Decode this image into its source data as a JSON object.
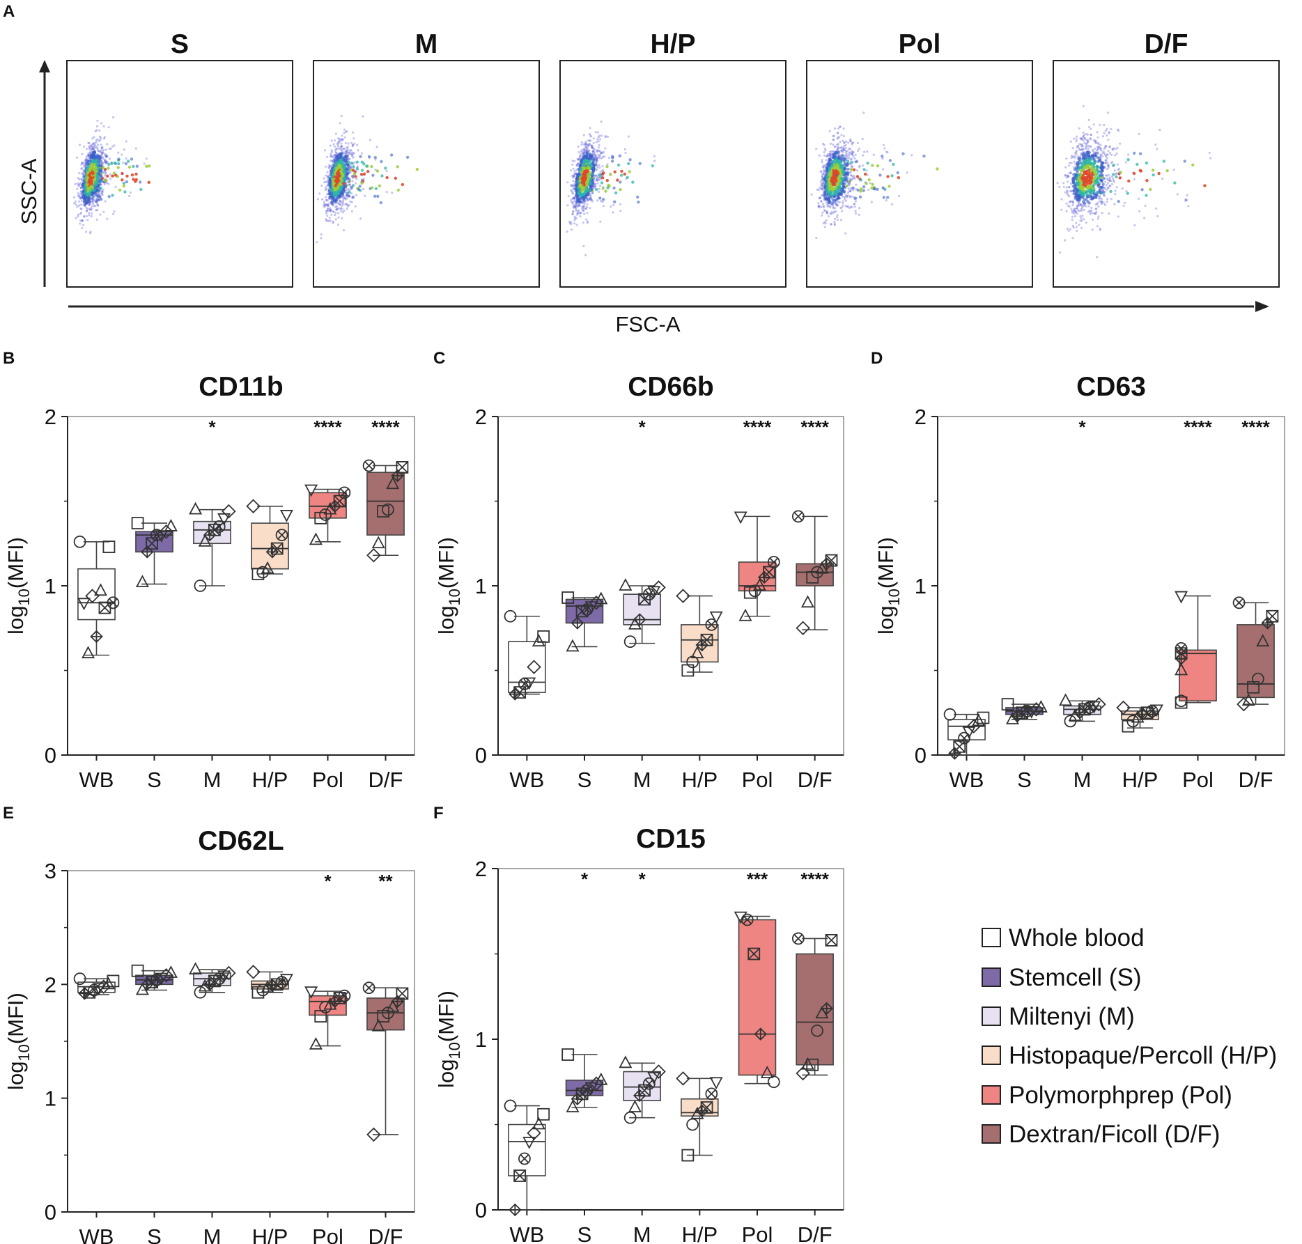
{
  "figure": {
    "panel_a": {
      "label": "A",
      "xaxis_label": "FSC-A",
      "yaxis_label": "SSC-A",
      "plots": [
        {
          "title": "S",
          "spread": 1.0,
          "tilt": 0.9
        },
        {
          "title": "M",
          "spread": 1.0,
          "tilt": 0.9
        },
        {
          "title": "H/P",
          "spread": 1.0,
          "tilt": 0.9
        },
        {
          "title": "Pol",
          "spread": 1.3,
          "tilt": 0.8
        },
        {
          "title": "D/F",
          "spread": 1.8,
          "tilt": 0.6
        }
      ]
    },
    "box_ylabel": "log10(MFI)",
    "categories": [
      "WB",
      "S",
      "M",
      "H/P",
      "Pol",
      "D/F"
    ]
  },
  "legend": {
    "items": [
      {
        "label": "Whole blood",
        "color": "#ffffff"
      },
      {
        "label": "Stemcell (S)",
        "color": "#7d6aa6"
      },
      {
        "label": "Miltenyi (M)",
        "color": "#e7e1f1"
      },
      {
        "label": "Histopaque/Percoll (H/P)",
        "color": "#f9ddc9"
      },
      {
        "label": "Polymorphprep (Pol)",
        "color": "#ee8582"
      },
      {
        "label": "Dextran/Ficoll (D/F)",
        "color": "#a66f6f"
      }
    ]
  },
  "chart_data": [
    {
      "panel": "B",
      "type": "box",
      "title": "CD11b",
      "ylabel": "log10(MFI)",
      "ylim": [
        0,
        2
      ],
      "yticks": [
        0,
        1,
        2
      ],
      "categories": [
        "WB",
        "S",
        "M",
        "H/P",
        "Pol",
        "D/F"
      ],
      "significance": [
        "",
        "",
        "*",
        "",
        "****",
        "****"
      ],
      "boxes": [
        {
          "min": 0.59,
          "q1": 0.8,
          "median": 0.9,
          "q3": 1.1,
          "max": 1.26,
          "points": [
            1.26,
            1.23,
            0.97,
            0.94,
            0.9,
            0.9,
            0.87,
            0.7,
            0.6
          ]
        },
        {
          "min": 1.01,
          "q1": 1.2,
          "median": 1.3,
          "q3": 1.32,
          "max": 1.37,
          "points": [
            1.37,
            1.35,
            1.32,
            1.3,
            1.3,
            1.25,
            1.2,
            1.02
          ]
        },
        {
          "min": 1.0,
          "q1": 1.25,
          "median": 1.33,
          "q3": 1.38,
          "max": 1.45,
          "points": [
            1.45,
            1.44,
            1.4,
            1.35,
            1.33,
            1.3,
            1.26,
            1.0
          ]
        },
        {
          "min": 1.07,
          "q1": 1.1,
          "median": 1.22,
          "q3": 1.37,
          "max": 1.47,
          "points": [
            1.47,
            1.42,
            1.3,
            1.22,
            1.2,
            1.1,
            1.08,
            1.07
          ]
        },
        {
          "min": 1.26,
          "q1": 1.4,
          "median": 1.47,
          "q3": 1.55,
          "max": 1.57,
          "points": [
            1.57,
            1.55,
            1.5,
            1.47,
            1.45,
            1.42,
            1.4,
            1.27
          ]
        },
        {
          "min": 1.18,
          "q1": 1.3,
          "median": 1.5,
          "q3": 1.67,
          "max": 1.71,
          "points": [
            1.71,
            1.7,
            1.65,
            1.6,
            1.45,
            1.44,
            1.25,
            1.18
          ]
        }
      ]
    },
    {
      "panel": "C",
      "type": "box",
      "title": "CD66b",
      "ylabel": "log10(MFI)",
      "ylim": [
        0,
        2
      ],
      "yticks": [
        0,
        1,
        2
      ],
      "categories": [
        "WB",
        "S",
        "M",
        "H/P",
        "Pol",
        "D/F"
      ],
      "significance": [
        "",
        "",
        "*",
        "",
        "****",
        "****"
      ],
      "boxes": [
        {
          "min": 0.36,
          "q1": 0.37,
          "median": 0.43,
          "q3": 0.67,
          "max": 0.82,
          "points": [
            0.82,
            0.7,
            0.67,
            0.52,
            0.43,
            0.42,
            0.37,
            0.36
          ]
        },
        {
          "min": 0.64,
          "q1": 0.78,
          "median": 0.88,
          "q3": 0.92,
          "max": 0.93,
          "points": [
            0.93,
            0.92,
            0.9,
            0.88,
            0.86,
            0.85,
            0.78,
            0.64
          ]
        },
        {
          "min": 0.66,
          "q1": 0.77,
          "median": 0.8,
          "q3": 0.95,
          "max": 1.0,
          "points": [
            1.0,
            0.99,
            0.97,
            0.95,
            0.92,
            0.8,
            0.77,
            0.67
          ]
        },
        {
          "min": 0.49,
          "q1": 0.55,
          "median": 0.68,
          "q3": 0.77,
          "max": 0.94,
          "points": [
            0.94,
            0.82,
            0.77,
            0.68,
            0.65,
            0.6,
            0.55,
            0.5
          ]
        },
        {
          "min": 0.82,
          "q1": 0.97,
          "median": 1.0,
          "q3": 1.14,
          "max": 1.41,
          "points": [
            1.41,
            1.14,
            1.08,
            1.05,
            1.0,
            0.97,
            0.96,
            0.82
          ]
        },
        {
          "min": 0.74,
          "q1": 1.0,
          "median": 1.08,
          "q3": 1.13,
          "max": 1.41,
          "points": [
            1.41,
            1.15,
            1.13,
            1.1,
            1.08,
            1.05,
            0.9,
            0.75
          ]
        }
      ]
    },
    {
      "panel": "D",
      "type": "box",
      "title": "CD63",
      "ylabel": "log10(MFI)",
      "ylim": [
        0,
        2
      ],
      "yticks": [
        0,
        1,
        2
      ],
      "categories": [
        "WB",
        "S",
        "M",
        "H/P",
        "Pol",
        "D/F"
      ],
      "significance": [
        "",
        "",
        "*",
        "",
        "****",
        "****"
      ],
      "boxes": [
        {
          "min": 0.0,
          "q1": 0.09,
          "median": 0.17,
          "q3": 0.21,
          "max": 0.24,
          "points": [
            0.24,
            0.22,
            0.2,
            0.17,
            0.14,
            0.1,
            0.05,
            0.01
          ]
        },
        {
          "min": 0.21,
          "q1": 0.24,
          "median": 0.26,
          "q3": 0.28,
          "max": 0.3,
          "points": [
            0.3,
            0.28,
            0.27,
            0.26,
            0.26,
            0.25,
            0.23,
            0.21
          ]
        },
        {
          "min": 0.2,
          "q1": 0.24,
          "median": 0.27,
          "q3": 0.29,
          "max": 0.32,
          "points": [
            0.32,
            0.3,
            0.29,
            0.28,
            0.27,
            0.25,
            0.23,
            0.2
          ]
        },
        {
          "min": 0.16,
          "q1": 0.21,
          "median": 0.24,
          "q3": 0.26,
          "max": 0.28,
          "points": [
            0.28,
            0.27,
            0.26,
            0.25,
            0.24,
            0.22,
            0.2,
            0.17
          ]
        },
        {
          "min": 0.31,
          "q1": 0.32,
          "median": 0.6,
          "q3": 0.62,
          "max": 0.94,
          "points": [
            0.94,
            0.63,
            0.6,
            0.57,
            0.5,
            0.32,
            0.31
          ]
        },
        {
          "min": 0.3,
          "q1": 0.34,
          "median": 0.42,
          "q3": 0.77,
          "max": 0.9,
          "points": [
            0.9,
            0.82,
            0.78,
            0.67,
            0.45,
            0.4,
            0.32,
            0.3
          ]
        }
      ]
    },
    {
      "panel": "E",
      "type": "box",
      "title": "CD62L",
      "ylabel": "log10(MFI)",
      "ylim": [
        0,
        3
      ],
      "yticks": [
        0,
        1,
        2,
        3
      ],
      "categories": [
        "WB",
        "S",
        "M",
        "H/P",
        "Pol",
        "D/F"
      ],
      "significance": [
        "",
        "",
        "",
        "",
        "*",
        "**"
      ],
      "boxes": [
        {
          "min": 1.91,
          "q1": 1.93,
          "median": 1.98,
          "q3": 2.02,
          "max": 2.05,
          "points": [
            2.05,
            2.03,
            2.0,
            1.98,
            1.97,
            1.95,
            1.93,
            1.92
          ]
        },
        {
          "min": 1.95,
          "q1": 2.0,
          "median": 2.04,
          "q3": 2.08,
          "max": 2.12,
          "points": [
            2.12,
            2.1,
            2.08,
            2.06,
            2.04,
            2.02,
            2.0,
            1.95
          ]
        },
        {
          "min": 1.93,
          "q1": 1.99,
          "median": 2.05,
          "q3": 2.1,
          "max": 2.13,
          "points": [
            2.13,
            2.1,
            2.08,
            2.05,
            2.03,
            2.0,
            1.98,
            1.93
          ]
        },
        {
          "min": 1.93,
          "q1": 1.96,
          "median": 2.0,
          "q3": 2.03,
          "max": 2.11,
          "points": [
            2.11,
            2.05,
            2.02,
            2.0,
            1.99,
            1.97,
            1.95,
            1.93
          ]
        },
        {
          "min": 1.46,
          "q1": 1.73,
          "median": 1.85,
          "q3": 1.9,
          "max": 1.94,
          "points": [
            1.94,
            1.9,
            1.88,
            1.85,
            1.82,
            1.8,
            1.72,
            1.47
          ]
        },
        {
          "min": 0.68,
          "q1": 1.6,
          "median": 1.75,
          "q3": 1.88,
          "max": 1.97,
          "points": [
            1.97,
            1.92,
            1.85,
            1.8,
            1.75,
            1.72,
            1.63,
            0.68
          ]
        }
      ]
    },
    {
      "panel": "F",
      "type": "box",
      "title": "CD15",
      "ylabel": "log10(MFI)",
      "ylim": [
        0,
        2
      ],
      "yticks": [
        0,
        1,
        2
      ],
      "categories": [
        "WB",
        "S",
        "M",
        "H/P",
        "Pol",
        "D/F"
      ],
      "significance": [
        "",
        "*",
        "*",
        "",
        "***",
        "****"
      ],
      "boxes": [
        {
          "min": 0.0,
          "q1": 0.2,
          "median": 0.4,
          "q3": 0.5,
          "max": 0.61,
          "points": [
            0.61,
            0.56,
            0.5,
            0.45,
            0.4,
            0.3,
            0.2,
            0.0
          ]
        },
        {
          "min": 0.6,
          "q1": 0.67,
          "median": 0.7,
          "q3": 0.76,
          "max": 0.91,
          "points": [
            0.91,
            0.76,
            0.74,
            0.72,
            0.7,
            0.68,
            0.65,
            0.6
          ]
        },
        {
          "min": 0.54,
          "q1": 0.64,
          "median": 0.72,
          "q3": 0.81,
          "max": 0.86,
          "points": [
            0.86,
            0.81,
            0.78,
            0.74,
            0.7,
            0.67,
            0.6,
            0.54
          ]
        },
        {
          "min": 0.32,
          "q1": 0.55,
          "median": 0.57,
          "q3": 0.65,
          "max": 0.77,
          "points": [
            0.77,
            0.75,
            0.68,
            0.6,
            0.58,
            0.56,
            0.5,
            0.32
          ]
        },
        {
          "min": 0.74,
          "q1": 0.79,
          "median": 1.03,
          "q3": 1.7,
          "max": 1.72,
          "points": [
            1.72,
            1.7,
            1.5,
            1.03,
            0.8,
            0.75
          ]
        },
        {
          "min": 0.79,
          "q1": 0.85,
          "median": 1.1,
          "q3": 1.5,
          "max": 1.59,
          "points": [
            1.59,
            1.58,
            1.18,
            1.15,
            1.05,
            0.85,
            0.85,
            0.8
          ]
        }
      ]
    }
  ]
}
